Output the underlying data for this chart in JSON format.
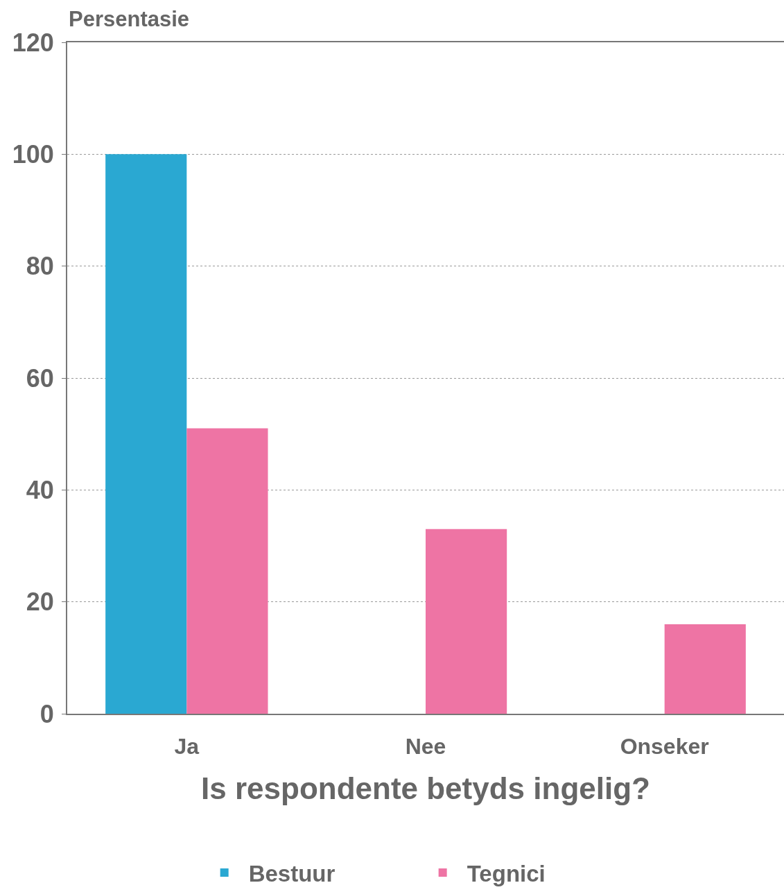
{
  "chart_data": {
    "type": "bar",
    "xlabel": "Is respondente betyds ingelig?",
    "ylabel": "Persentasie",
    "categories": [
      "Ja",
      "Nee",
      "Onseker"
    ],
    "series": [
      {
        "name": "Bestuur",
        "color": "#2aa8d2",
        "values": [
          100,
          0,
          0
        ]
      },
      {
        "name": "Tegnici",
        "color": "#ee74a4",
        "values": [
          51,
          33,
          16
        ]
      }
    ],
    "ylim": [
      0,
      120
    ],
    "yticks": [
      0,
      20,
      40,
      60,
      80,
      100,
      120
    ],
    "grid": "y",
    "legend": "bottom"
  }
}
